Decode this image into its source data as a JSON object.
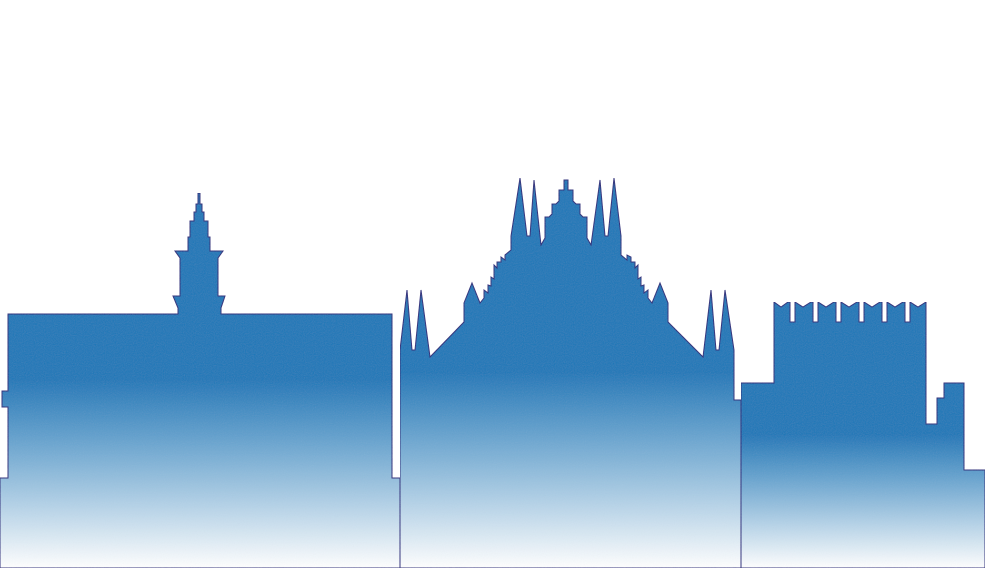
{
  "colors": {
    "background": "#ffffff",
    "fill_top": "#1f78b8",
    "fill_bottom": "#ffffff",
    "outline": "#2b2a7a"
  },
  "icons": [
    "clock-tower-icon",
    "cathedral-icon",
    "castle-icon"
  ]
}
